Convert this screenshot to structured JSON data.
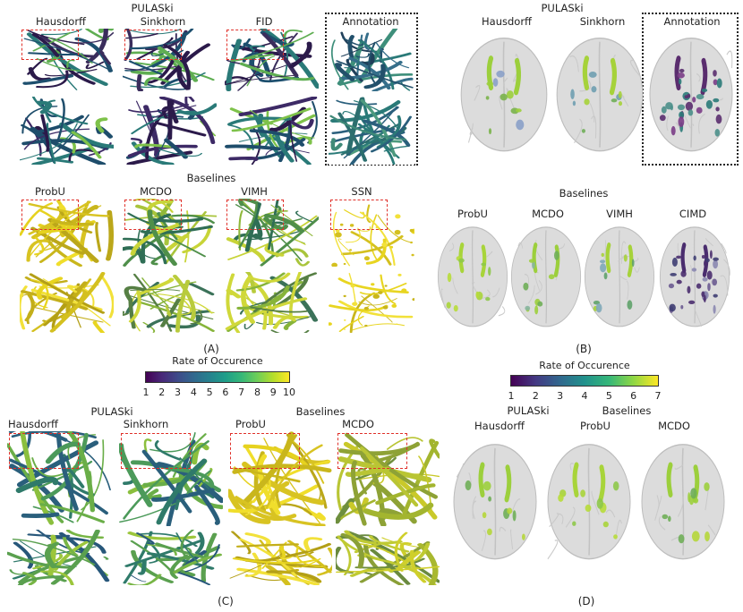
{
  "panel_a": {
    "group1_title": "PULASki",
    "group1_cols": [
      "Hausdorff",
      "Sinkhorn",
      "FID",
      "Annotation"
    ],
    "group2_title": "Baselines",
    "group2_cols": [
      "ProbU",
      "MCDO",
      "VIMH",
      "SSN"
    ],
    "letter": "(A)"
  },
  "panel_b": {
    "group1_title": "PULASki",
    "group1_cols": [
      "Hausdorff",
      "Sinkhorn",
      "Annotation"
    ],
    "group2_title": "Baselines",
    "group2_cols": [
      "ProbU",
      "MCDO",
      "VIMH",
      "CIMD"
    ],
    "letter": "(B)"
  },
  "panel_c": {
    "group1_title": "PULASki",
    "group2_title": "Baselines",
    "cols": [
      "Hausdorff",
      "Sinkhorn",
      "ProbU",
      "MCDO"
    ],
    "letter": "(C)"
  },
  "panel_d": {
    "group1_title": "PULASki",
    "group2_title": "Baselines",
    "cols": [
      "Hausdorff",
      "ProbU",
      "MCDO"
    ],
    "letter": "(D)"
  },
  "colorbar_left": {
    "title": "Rate of Occurence",
    "ticks": [
      "1",
      "2",
      "3",
      "4",
      "5",
      "6",
      "7",
      "8",
      "9",
      "10"
    ]
  },
  "colorbar_right": {
    "title": "Rate of Occurence",
    "ticks": [
      "1",
      "2",
      "3",
      "4",
      "5",
      "6",
      "7"
    ]
  },
  "colors": {
    "viridis_dark": "#440154",
    "viridis_mid": "#21918c",
    "viridis_light": "#fde725",
    "annotation_box": "#222222",
    "zoom_box": "#e0302a"
  }
}
